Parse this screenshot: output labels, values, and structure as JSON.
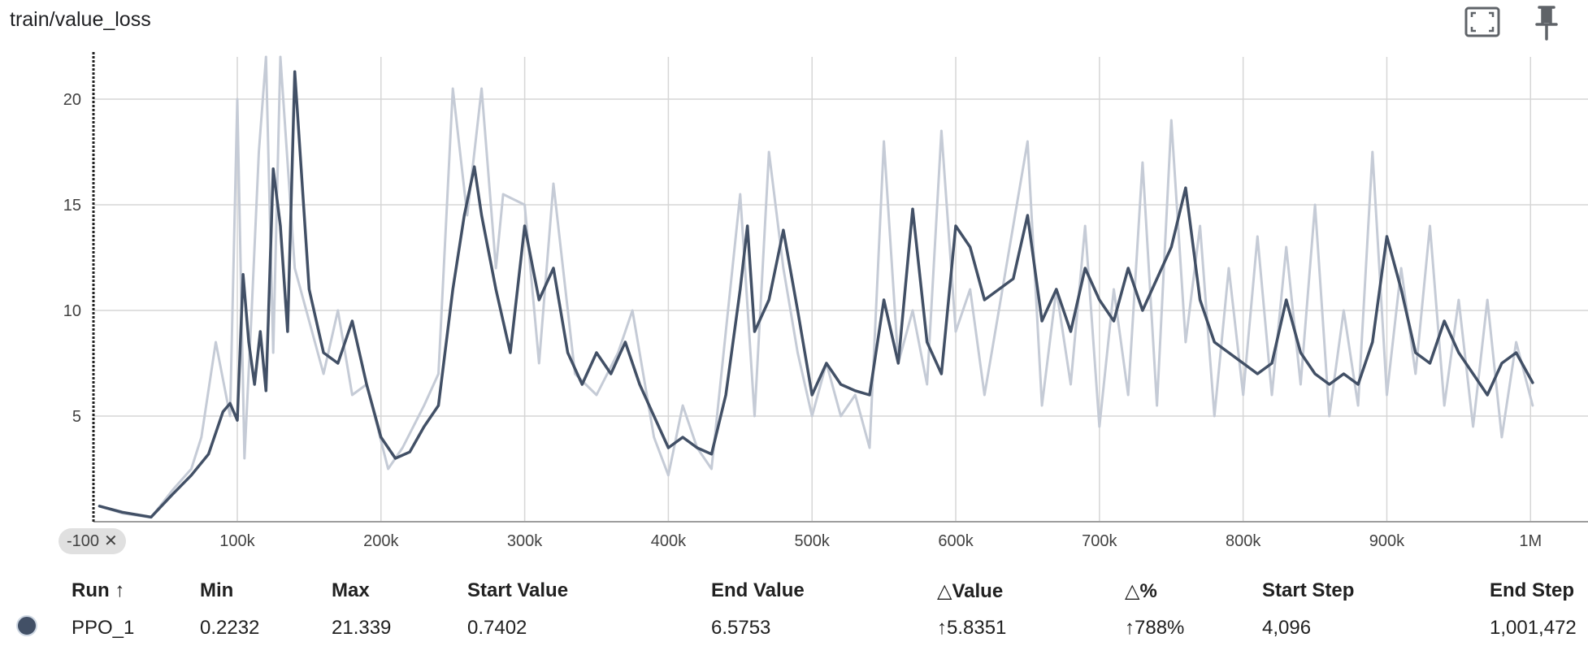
{
  "card": {
    "title": "train/value_loss",
    "fullscreen_icon": "fullscreen-icon",
    "pin_icon": "pin-icon"
  },
  "colors": {
    "raw_line": "#c5cbd6",
    "smooth_line": "#425066",
    "grid": "#d6d6d6",
    "axis": "#9e9e9e"
  },
  "step_filter": {
    "label": "-100",
    "close": "✕"
  },
  "chart_data": {
    "type": "line",
    "title": "train/value_loss",
    "xlabel": "",
    "ylabel": "",
    "xlim": [
      -100,
      1040000
    ],
    "ylim": [
      0,
      22
    ],
    "x_ticks": [
      100000,
      200000,
      300000,
      400000,
      500000,
      600000,
      700000,
      800000,
      900000,
      1000000
    ],
    "x_tick_labels": [
      "100k",
      "200k",
      "300k",
      "400k",
      "500k",
      "600k",
      "700k",
      "800k",
      "900k",
      "1M"
    ],
    "y_ticks": [
      5,
      10,
      15,
      20
    ],
    "y_tick_labels": [
      "5",
      "10",
      "15",
      "20"
    ],
    "grid": true,
    "series": [
      {
        "role": "raw",
        "x": [
          4096,
          20000,
          40000,
          55000,
          68000,
          75000,
          85000,
          95000,
          100000,
          105000,
          110000,
          115000,
          120000,
          125000,
          130000,
          140000,
          150000,
          160000,
          170000,
          180000,
          190000,
          205000,
          215000,
          230000,
          240000,
          250000,
          260000,
          270000,
          280000,
          285000,
          300000,
          310000,
          320000,
          335000,
          350000,
          365000,
          375000,
          390000,
          400000,
          410000,
          420000,
          430000,
          440000,
          450000,
          460000,
          470000,
          480000,
          490000,
          500000,
          510000,
          520000,
          530000,
          540000,
          550000,
          560000,
          570000,
          580000,
          590000,
          600000,
          610000,
          620000,
          635000,
          650000,
          660000,
          670000,
          680000,
          690000,
          700000,
          710000,
          720000,
          730000,
          740000,
          750000,
          760000,
          770000,
          780000,
          790000,
          800000,
          810000,
          820000,
          830000,
          840000,
          850000,
          860000,
          870000,
          880000,
          890000,
          900000,
          910000,
          920000,
          930000,
          940000,
          950000,
          960000,
          970000,
          980000,
          990000,
          1001472
        ],
        "y": [
          0.74,
          0.4,
          0.2,
          1.5,
          2.5,
          4.0,
          8.5,
          5.0,
          20.0,
          3.0,
          10.0,
          17.5,
          22.0,
          8.0,
          22.0,
          12.0,
          9.5,
          7.0,
          10.0,
          6.0,
          6.5,
          2.5,
          3.5,
          5.5,
          7.0,
          20.5,
          14.5,
          20.5,
          12.0,
          15.5,
          15.0,
          7.5,
          16.0,
          7.0,
          6.0,
          8.0,
          10.0,
          4.0,
          2.2,
          5.5,
          3.5,
          2.5,
          9.0,
          15.5,
          5.0,
          17.5,
          12.0,
          8.0,
          5.0,
          7.5,
          5.0,
          6.0,
          3.5,
          18.0,
          7.5,
          10.0,
          6.5,
          18.5,
          9.0,
          11.0,
          6.0,
          12.0,
          18.0,
          5.5,
          11.0,
          6.5,
          14.0,
          4.5,
          11.0,
          6.0,
          17.0,
          5.5,
          19.0,
          8.5,
          14.0,
          5.0,
          12.0,
          6.0,
          13.5,
          6.0,
          13.0,
          6.5,
          15.0,
          5.0,
          10.0,
          5.5,
          17.5,
          6.0,
          12.0,
          7.0,
          14.0,
          5.5,
          10.5,
          4.5,
          10.5,
          4.0,
          8.5,
          5.5
        ]
      },
      {
        "role": "smoothed",
        "name": "PPO_1",
        "x": [
          4096,
          20000,
          40000,
          55000,
          68000,
          80000,
          90000,
          95000,
          100000,
          104000,
          108000,
          112000,
          116000,
          120000,
          125000,
          130000,
          135000,
          140000,
          150000,
          160000,
          170000,
          180000,
          190000,
          200000,
          210000,
          220000,
          230000,
          240000,
          250000,
          258000,
          265000,
          270000,
          280000,
          290000,
          300000,
          310000,
          320000,
          330000,
          340000,
          350000,
          360000,
          370000,
          380000,
          390000,
          400000,
          410000,
          420000,
          430000,
          440000,
          450000,
          455000,
          460000,
          470000,
          480000,
          490000,
          500000,
          510000,
          520000,
          530000,
          540000,
          550000,
          560000,
          570000,
          580000,
          590000,
          600000,
          610000,
          620000,
          630000,
          640000,
          650000,
          660000,
          670000,
          680000,
          690000,
          700000,
          710000,
          720000,
          730000,
          740000,
          750000,
          760000,
          770000,
          780000,
          790000,
          800000,
          810000,
          820000,
          830000,
          840000,
          850000,
          860000,
          870000,
          880000,
          890000,
          900000,
          910000,
          920000,
          930000,
          940000,
          950000,
          960000,
          970000,
          980000,
          990000,
          1001472
        ],
        "y": [
          0.74,
          0.45,
          0.22,
          1.3,
          2.2,
          3.2,
          5.2,
          5.6,
          4.8,
          11.7,
          8.5,
          6.5,
          9.0,
          6.2,
          16.7,
          14.0,
          9.0,
          21.3,
          11.0,
          8.0,
          7.5,
          9.5,
          6.5,
          4.0,
          3.0,
          3.3,
          4.5,
          5.5,
          11.0,
          14.5,
          16.8,
          14.5,
          11.0,
          8.0,
          14.0,
          10.5,
          12.0,
          8.0,
          6.5,
          8.0,
          7.0,
          8.5,
          6.5,
          5.0,
          3.5,
          4.0,
          3.5,
          3.2,
          6.0,
          11.0,
          14.0,
          9.0,
          10.5,
          13.8,
          10.0,
          6.0,
          7.5,
          6.5,
          6.2,
          6.0,
          10.5,
          7.5,
          14.8,
          8.5,
          7.0,
          14.0,
          13.0,
          10.5,
          11.0,
          11.5,
          14.5,
          9.5,
          11.0,
          9.0,
          12.0,
          10.5,
          9.5,
          12.0,
          10.0,
          11.5,
          13.0,
          15.8,
          10.5,
          8.5,
          8.0,
          7.5,
          7.0,
          7.5,
          10.5,
          8.0,
          7.0,
          6.5,
          7.0,
          6.5,
          8.5,
          13.5,
          11.0,
          8.0,
          7.5,
          9.5,
          8.0,
          7.0,
          6.0,
          7.5,
          8.0,
          6.58
        ]
      }
    ]
  },
  "table": {
    "headers": [
      "Run ↑",
      "Min",
      "Max",
      "Start Value",
      "End Value",
      "△Value",
      "△%",
      "Start Step",
      "End Step"
    ],
    "rows": [
      {
        "run": "PPO_1",
        "min": "0.2232",
        "max": "21.339",
        "start_value": "0.7402",
        "end_value": "6.5753",
        "delta_value": "↑5.8351",
        "delta_pct": "↑788%",
        "start_step": "4,096",
        "end_step": "1,001,472"
      }
    ]
  }
}
